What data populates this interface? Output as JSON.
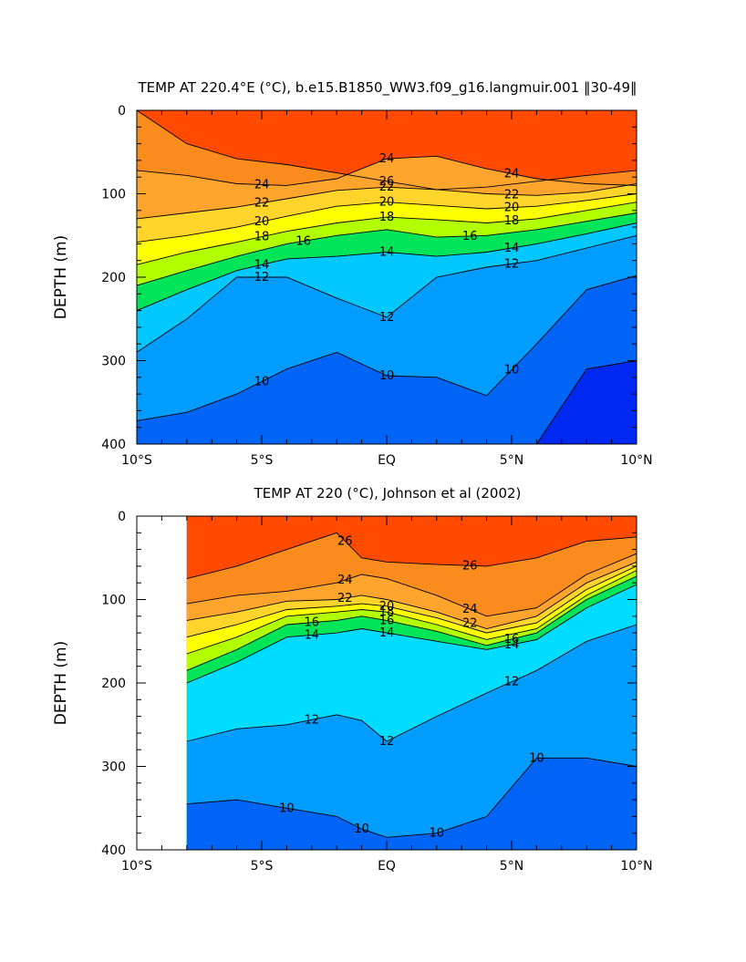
{
  "chart_data": [
    {
      "type": "contour",
      "title": "TEMP AT 220.4°E (°C), b.e15.B1850_WW3.f09_g16.langmuir.001 ‖30-49‖",
      "xlabel": "",
      "ylabel": "DEPTH (m)",
      "xlim": [
        -10,
        10
      ],
      "ylim": [
        0,
        400
      ],
      "x_ticks": [
        "10°S",
        "5°S",
        "EQ",
        "5°N",
        "10°N"
      ],
      "y_ticks": [
        "0",
        "100",
        "200",
        "300",
        "400"
      ],
      "data_start_lat": -10,
      "colors": {
        "26+": "#ff4a00",
        "24-26": "#fa8c1e",
        "22-24": "#ffa42c",
        "20-22": "#ffd52c",
        "18-20": "#fdff00",
        "16-18": "#b2ff00",
        "14-16": "#00e45a",
        "12-14": "#00c8ff",
        "10-12": "#009cff",
        "<10": "#0064f6",
        "<8": "#0028f0"
      },
      "isotherms": [
        {
          "temp": 26,
          "depths": [
            0,
            40,
            58,
            65,
            75,
            85,
            95,
            92,
            85,
            78,
            72
          ],
          "labelled": true
        },
        {
          "temp": 24,
          "depths": [
            72,
            78,
            88,
            90,
            82,
            58,
            55,
            70,
            82,
            88,
            90
          ],
          "labelled": true
        },
        {
          "temp": 22,
          "depths": [
            130,
            123,
            116,
            106,
            96,
            92,
            95,
            100,
            102,
            98,
            88
          ],
          "labelled": true
        },
        {
          "temp": 20,
          "depths": [
            158,
            150,
            140,
            127,
            115,
            110,
            114,
            118,
            115,
            108,
            100
          ],
          "labelled": true
        },
        {
          "temp": 18,
          "depths": [
            185,
            170,
            158,
            145,
            135,
            128,
            131,
            135,
            130,
            120,
            110
          ],
          "labelled": true
        },
        {
          "temp": 16,
          "depths": [
            210,
            192,
            175,
            160,
            150,
            143,
            152,
            150,
            143,
            133,
            123
          ],
          "labelled": true
        },
        {
          "temp": 14,
          "depths": [
            240,
            215,
            192,
            178,
            175,
            170,
            175,
            170,
            160,
            148,
            135
          ],
          "labelled": true
        },
        {
          "temp": 12,
          "depths": [
            290,
            250,
            200,
            200,
            225,
            248,
            200,
            188,
            180,
            165,
            150
          ],
          "labelled": true
        },
        {
          "temp": 10,
          "depths": [
            372,
            362,
            340,
            310,
            290,
            318,
            320,
            342,
            280,
            215,
            198
          ],
          "labelled": true
        },
        {
          "temp": 8,
          "depths": [
            null,
            null,
            null,
            null,
            null,
            null,
            null,
            null,
            400,
            310,
            300
          ],
          "labelled": false
        }
      ],
      "lats": [
        -10,
        -8,
        -6,
        -4,
        -2,
        0,
        2,
        4,
        6,
        8,
        10
      ],
      "contour_labels": [
        "26",
        "24",
        "24",
        "24",
        "22",
        "22",
        "22",
        "20",
        "20",
        "20",
        "18",
        "18",
        "18",
        "16",
        "16",
        "14",
        "14",
        "14",
        "12",
        "12",
        "12",
        "10",
        "10",
        "10"
      ]
    },
    {
      "type": "contour",
      "title": "TEMP AT 220 (°C), Johnson et al (2002)",
      "xlabel": "",
      "ylabel": "DEPTH (m)",
      "xlim": [
        -10,
        10
      ],
      "ylim": [
        0,
        400
      ],
      "x_ticks": [
        "10°S",
        "5°S",
        "EQ",
        "5°N",
        "10°N"
      ],
      "y_ticks": [
        "0",
        "100",
        "200",
        "300",
        "400"
      ],
      "data_start_lat": -8,
      "colors": {
        "26+": "#ff4a00",
        "24-26": "#fa8c1e",
        "22-24": "#ffa42c",
        "20-22": "#ffd52c",
        "18-20": "#fdff00",
        "16-18": "#b2ff00",
        "14-16": "#00e45a",
        "12-14": "#00dcff",
        "10-12": "#009cff",
        "<10": "#0064f6",
        "<8": "#0028f0"
      },
      "isotherms": [
        {
          "temp": 26,
          "depths": [
            75,
            60,
            40,
            20,
            50,
            55,
            58,
            60,
            50,
            30,
            25
          ],
          "labelled": true
        },
        {
          "temp": 24,
          "depths": [
            105,
            95,
            90,
            80,
            70,
            75,
            95,
            120,
            110,
            70,
            45
          ],
          "labelled": true
        },
        {
          "temp": 22,
          "depths": [
            125,
            115,
            102,
            100,
            95,
            100,
            115,
            135,
            120,
            80,
            55
          ],
          "labelled": true
        },
        {
          "temp": 20,
          "depths": [
            145,
            130,
            112,
            108,
            105,
            108,
            122,
            140,
            128,
            88,
            60
          ],
          "labelled": true
        },
        {
          "temp": 18,
          "depths": [
            165,
            145,
            120,
            115,
            112,
            115,
            130,
            148,
            135,
            95,
            65
          ],
          "labelled": true
        },
        {
          "temp": 16,
          "depths": [
            185,
            160,
            130,
            125,
            120,
            125,
            138,
            155,
            140,
            100,
            72
          ],
          "labelled": true
        },
        {
          "temp": 14,
          "depths": [
            200,
            175,
            145,
            140,
            135,
            140,
            150,
            160,
            148,
            110,
            82
          ],
          "labelled": true
        },
        {
          "temp": 12,
          "depths": [
            270,
            255,
            250,
            238,
            245,
            270,
            240,
            212,
            185,
            150,
            130
          ],
          "labelled": true
        },
        {
          "temp": 10,
          "depths": [
            345,
            340,
            350,
            360,
            375,
            385,
            380,
            360,
            290,
            290,
            300
          ],
          "labelled": true
        }
      ],
      "lats": [
        -8,
        -6,
        -4,
        -2,
        -1,
        0,
        2,
        4,
        6,
        8,
        10
      ],
      "contour_labels": [
        "26",
        "26",
        "24",
        "24",
        "22",
        "22",
        "20",
        "18",
        "16",
        "16",
        "16",
        "14",
        "14",
        "14",
        "12",
        "12",
        "12",
        "10",
        "10",
        "10",
        "10"
      ]
    }
  ]
}
